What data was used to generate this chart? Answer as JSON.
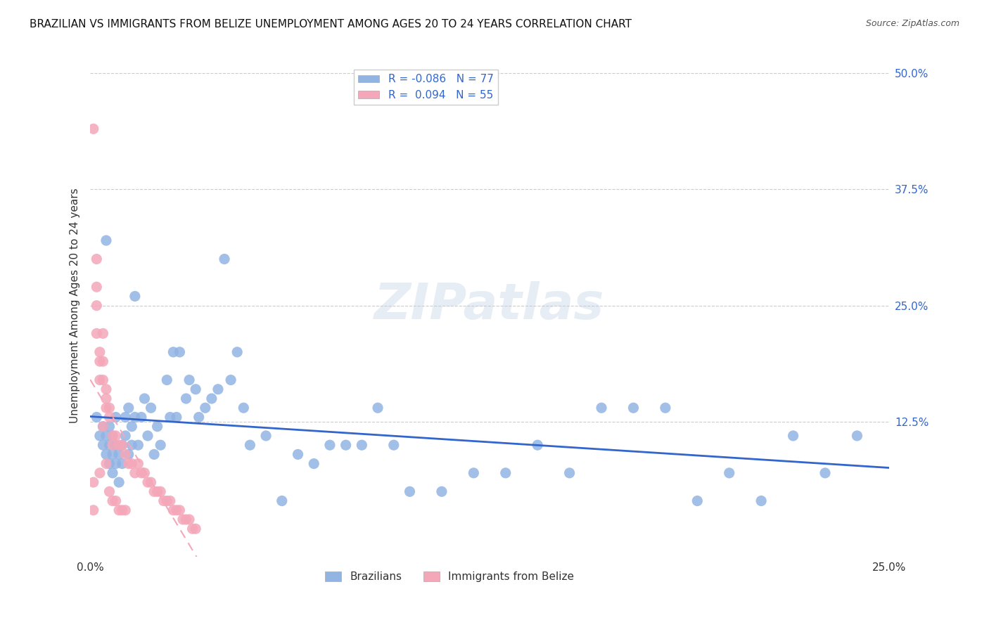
{
  "title": "BRAZILIAN VS IMMIGRANTS FROM BELIZE UNEMPLOYMENT AMONG AGES 20 TO 24 YEARS CORRELATION CHART",
  "source": "Source: ZipAtlas.com",
  "ylabel": "Unemployment Among Ages 20 to 24 years",
  "xlim": [
    0.0,
    0.25
  ],
  "ylim": [
    -0.02,
    0.52
  ],
  "legend_r_blue": "-0.086",
  "legend_n_blue": "77",
  "legend_r_pink": "0.094",
  "legend_n_pink": "55",
  "blue_color": "#92b4e3",
  "pink_color": "#f4a7b9",
  "trend_blue_color": "#3366cc",
  "trend_pink_color": "#e8a0b0",
  "background_color": "#ffffff",
  "grid_color": "#cccccc",
  "watermark": "ZIPatlas",
  "brazilians_x": [
    0.002,
    0.003,
    0.004,
    0.004,
    0.005,
    0.005,
    0.006,
    0.006,
    0.006,
    0.007,
    0.007,
    0.007,
    0.008,
    0.008,
    0.008,
    0.009,
    0.009,
    0.01,
    0.01,
    0.011,
    0.011,
    0.012,
    0.012,
    0.013,
    0.013,
    0.014,
    0.014,
    0.015,
    0.016,
    0.017,
    0.018,
    0.019,
    0.02,
    0.021,
    0.022,
    0.024,
    0.025,
    0.026,
    0.027,
    0.028,
    0.03,
    0.031,
    0.033,
    0.034,
    0.036,
    0.038,
    0.04,
    0.042,
    0.044,
    0.046,
    0.048,
    0.05,
    0.055,
    0.06,
    0.065,
    0.07,
    0.075,
    0.08,
    0.085,
    0.09,
    0.095,
    0.1,
    0.11,
    0.12,
    0.13,
    0.14,
    0.15,
    0.16,
    0.17,
    0.18,
    0.2,
    0.22,
    0.24,
    0.19,
    0.21,
    0.23,
    0.005
  ],
  "brazilians_y": [
    0.13,
    0.11,
    0.1,
    0.12,
    0.09,
    0.11,
    0.08,
    0.1,
    0.12,
    0.07,
    0.09,
    0.11,
    0.08,
    0.1,
    0.13,
    0.06,
    0.09,
    0.1,
    0.08,
    0.13,
    0.11,
    0.09,
    0.14,
    0.1,
    0.12,
    0.26,
    0.13,
    0.1,
    0.13,
    0.15,
    0.11,
    0.14,
    0.09,
    0.12,
    0.1,
    0.17,
    0.13,
    0.2,
    0.13,
    0.2,
    0.15,
    0.17,
    0.16,
    0.13,
    0.14,
    0.15,
    0.16,
    0.3,
    0.17,
    0.2,
    0.14,
    0.1,
    0.11,
    0.04,
    0.09,
    0.08,
    0.1,
    0.1,
    0.1,
    0.14,
    0.1,
    0.05,
    0.05,
    0.07,
    0.07,
    0.1,
    0.07,
    0.14,
    0.14,
    0.14,
    0.07,
    0.11,
    0.11,
    0.04,
    0.04,
    0.07,
    0.32
  ],
  "belize_x": [
    0.001,
    0.001,
    0.001,
    0.002,
    0.002,
    0.002,
    0.002,
    0.003,
    0.003,
    0.003,
    0.003,
    0.004,
    0.004,
    0.004,
    0.004,
    0.005,
    0.005,
    0.005,
    0.005,
    0.006,
    0.006,
    0.006,
    0.007,
    0.007,
    0.007,
    0.008,
    0.008,
    0.009,
    0.009,
    0.01,
    0.01,
    0.011,
    0.011,
    0.012,
    0.013,
    0.014,
    0.015,
    0.016,
    0.017,
    0.018,
    0.019,
    0.02,
    0.021,
    0.022,
    0.023,
    0.024,
    0.025,
    0.026,
    0.027,
    0.028,
    0.029,
    0.03,
    0.031,
    0.032,
    0.033
  ],
  "belize_y": [
    0.44,
    0.06,
    0.03,
    0.3,
    0.27,
    0.25,
    0.22,
    0.2,
    0.19,
    0.17,
    0.07,
    0.22,
    0.19,
    0.17,
    0.12,
    0.16,
    0.15,
    0.14,
    0.08,
    0.14,
    0.13,
    0.05,
    0.11,
    0.1,
    0.04,
    0.11,
    0.04,
    0.1,
    0.03,
    0.1,
    0.03,
    0.09,
    0.03,
    0.08,
    0.08,
    0.07,
    0.08,
    0.07,
    0.07,
    0.06,
    0.06,
    0.05,
    0.05,
    0.05,
    0.04,
    0.04,
    0.04,
    0.03,
    0.03,
    0.03,
    0.02,
    0.02,
    0.02,
    0.01,
    0.01
  ]
}
